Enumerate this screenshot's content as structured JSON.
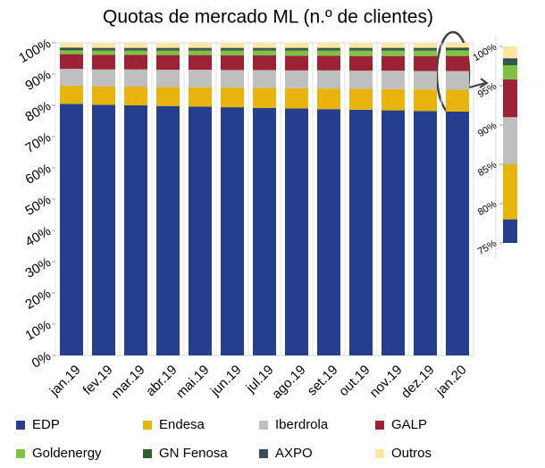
{
  "chart_data": {
    "type": "stacked_bar",
    "title": "Quotas de mercado ML (n.º de clientes)",
    "categories": [
      "jan.19",
      "fev.19",
      "mar.19",
      "abr.19",
      "mai.19",
      "jun.19",
      "jul.19",
      "ago.19",
      "set.19",
      "out.19",
      "nov.19",
      "dez.19",
      "jan.20"
    ],
    "series": [
      {
        "name": "EDP",
        "color": "#253f8e",
        "values": [
          80.5,
          80.2,
          80.0,
          79.8,
          79.6,
          79.4,
          79.2,
          79.0,
          78.8,
          78.6,
          78.4,
          78.2,
          78.0
        ]
      },
      {
        "name": "Endesa",
        "color": "#e8b30c",
        "values": [
          5.8,
          5.9,
          6.0,
          6.1,
          6.2,
          6.3,
          6.4,
          6.5,
          6.6,
          6.7,
          6.8,
          6.9,
          7.0
        ]
      },
      {
        "name": "Iberdrola",
        "color": "#bfbfbf",
        "values": [
          5.4,
          5.4,
          5.5,
          5.5,
          5.6,
          5.6,
          5.7,
          5.7,
          5.8,
          5.8,
          5.9,
          5.9,
          6.0
        ]
      },
      {
        "name": "GALP",
        "color": "#9b2335",
        "values": [
          4.7,
          4.7,
          4.7,
          4.7,
          4.7,
          4.7,
          4.7,
          4.7,
          4.7,
          4.7,
          4.7,
          4.8,
          4.8
        ]
      },
      {
        "name": "Goldenergy",
        "color": "#7dc242",
        "values": [
          1.2,
          1.3,
          1.3,
          1.4,
          1.4,
          1.5,
          1.5,
          1.6,
          1.6,
          1.7,
          1.7,
          1.7,
          1.8
        ]
      },
      {
        "name": "GN Fenosa",
        "color": "#2e5e2e",
        "values": [
          0.4,
          0.4,
          0.4,
          0.4,
          0.4,
          0.4,
          0.4,
          0.4,
          0.4,
          0.4,
          0.4,
          0.4,
          0.4
        ]
      },
      {
        "name": "AXPO",
        "color": "#3b4a5c",
        "values": [
          0.5,
          0.5,
          0.5,
          0.5,
          0.5,
          0.5,
          0.5,
          0.5,
          0.5,
          0.5,
          0.5,
          0.5,
          0.5
        ]
      },
      {
        "name": "Outros",
        "color": "#fbe6a2",
        "values": [
          1.5,
          1.6,
          1.6,
          1.6,
          1.6,
          1.6,
          1.6,
          1.6,
          1.6,
          1.6,
          1.6,
          1.6,
          1.5
        ]
      }
    ],
    "ylim": [
      0,
      100
    ],
    "yticks": [
      {
        "value": 0,
        "label": "0%"
      },
      {
        "value": 10,
        "label": "10%"
      },
      {
        "value": 20,
        "label": "20%"
      },
      {
        "value": 30,
        "label": "30%"
      },
      {
        "value": 40,
        "label": "40%"
      },
      {
        "value": 50,
        "label": "50%"
      },
      {
        "value": 60,
        "label": "60%"
      },
      {
        "value": 70,
        "label": "70%"
      },
      {
        "value": 80,
        "label": "80%"
      },
      {
        "value": 90,
        "label": "90%"
      },
      {
        "value": 100,
        "label": "100%"
      }
    ],
    "inset": {
      "ylim": [
        75,
        100
      ],
      "yticks": [
        {
          "value": 75,
          "label": "75%"
        },
        {
          "value": 80,
          "label": "80%"
        },
        {
          "value": 85,
          "label": "85%"
        },
        {
          "value": 90,
          "label": "90%"
        },
        {
          "value": 95,
          "label": "95%"
        },
        {
          "value": 100,
          "label": "100%"
        }
      ]
    }
  }
}
